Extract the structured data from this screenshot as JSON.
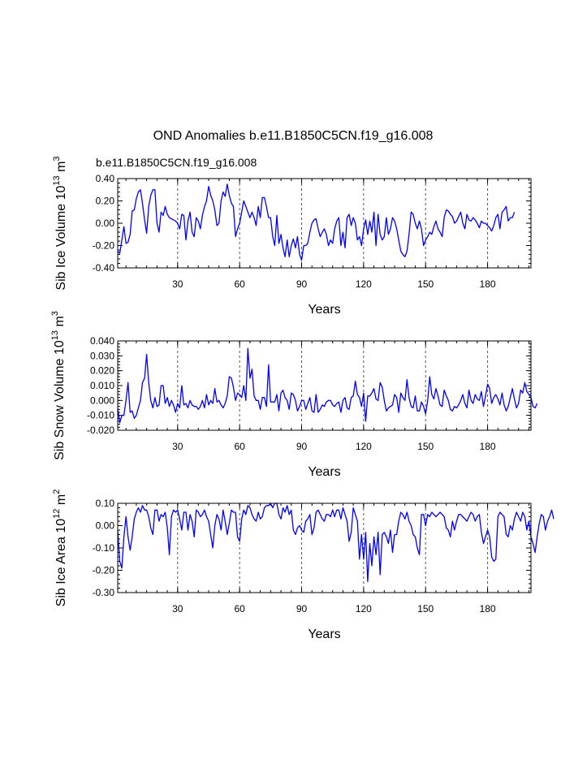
{
  "title": "OND Anomalies b.e11.B1850C5CN.f19_g16.008",
  "subtitle": "b.e11.B1850C5CN.f19_g16.008",
  "colors": {
    "series": "#0000ff",
    "subtitle": "#0000ff",
    "axes": "#000000",
    "grid": "#555555"
  },
  "chart_data": [
    {
      "type": "line",
      "id": "ice-volume",
      "ylabel_main": "Sib Ice Volume 10",
      "ylabel_sup": "13",
      "ylabel_unit": " m",
      "ylabel_unit_sup": "3",
      "xlabel": "Years",
      "xlim": [
        1,
        201
      ],
      "ylim": [
        -0.4,
        0.4
      ],
      "xticks": [
        30,
        60,
        90,
        120,
        150,
        180
      ],
      "xtick_labels": [
        "30",
        "60",
        "90",
        "120",
        "150",
        "180"
      ],
      "yticks": [
        -0.4,
        -0.2,
        0.0,
        0.2,
        0.4
      ],
      "ytick_labels": [
        "-0.40",
        "-0.20",
        "0.00",
        "0.20",
        "0.40"
      ],
      "grid_x": [
        30,
        60,
        90,
        120,
        150,
        180
      ],
      "series": [
        {
          "name": "Sib Ice Volume",
          "x0": 1,
          "values": [
            -0.25,
            -0.27,
            -0.15,
            -0.03,
            -0.18,
            -0.17,
            -0.1,
            0.11,
            0.12,
            0.22,
            0.28,
            0.3,
            0.18,
            0.03,
            -0.09,
            0.15,
            0.25,
            0.3,
            0.3,
            0.0,
            -0.08,
            0.1,
            0.07,
            0.15,
            0.08,
            0.05,
            0.04,
            0.03,
            0.02,
            0.0,
            -0.05,
            0.08,
            0.07,
            -0.15,
            0.02,
            0.1,
            -0.08,
            -0.12,
            0.05,
            0.02,
            -0.05,
            0.07,
            0.15,
            0.2,
            0.33,
            0.25,
            0.2,
            0.12,
            -0.02,
            0.0,
            0.2,
            0.28,
            0.24,
            0.35,
            0.25,
            0.18,
            0.15,
            -0.12,
            -0.05,
            0.0,
            0.1,
            0.2,
            0.15,
            0.1,
            0.05,
            0.1,
            0.05,
            -0.02,
            0.15,
            0.05,
            0.23,
            0.23,
            0.15,
            0.05,
            0.05,
            -0.12,
            -0.2,
            0.07,
            -0.18,
            -0.1,
            -0.22,
            -0.3,
            -0.15,
            -0.3,
            -0.2,
            -0.14,
            -0.22,
            -0.12,
            -0.28,
            -0.33,
            -0.2,
            -0.2,
            -0.18,
            -0.08,
            0.0,
            0.03,
            0.04,
            -0.05,
            -0.12,
            -0.08,
            -0.05,
            -0.1,
            -0.2,
            -0.15,
            -0.18,
            -0.05,
            0.02,
            0.05,
            -0.2,
            -0.08,
            -0.22,
            0.05,
            0.08,
            -0.02,
            0.05,
            0.0,
            -0.15,
            -0.12,
            -0.2,
            -0.05,
            0.03,
            -0.1,
            0.02,
            -0.08,
            0.1,
            -0.2,
            0.08,
            -0.1,
            -0.15,
            -0.12,
            0.05,
            -0.1,
            -0.05,
            0.05,
            0.02,
            -0.05,
            -0.15,
            -0.25,
            -0.28,
            -0.3,
            -0.25,
            -0.1,
            0.1,
            0.08,
            0.0,
            -0.05,
            0.02,
            -0.05,
            -0.2,
            -0.15,
            -0.12,
            -0.08,
            -0.1,
            -0.03,
            0.02,
            -0.05,
            -0.08,
            -0.12,
            0.05,
            0.12,
            0.11,
            0.08,
            0.06,
            0.0,
            0.02,
            0.06,
            0.1,
            0.0,
            -0.05,
            0.08,
            0.03,
            0.02,
            0.05,
            0.03,
            0.0,
            -0.04,
            0.02,
            0.0,
            0.0,
            -0.02,
            -0.04,
            -0.07,
            -0.02,
            0.05,
            0.08,
            -0.05,
            0.1,
            0.12,
            0.15,
            0.02,
            0.05,
            0.05,
            0.1
          ]
        }
      ]
    },
    {
      "type": "line",
      "id": "snow-volume",
      "ylabel_main": "Sib Snow Volume 10",
      "ylabel_sup": "13",
      "ylabel_unit": " m",
      "ylabel_unit_sup": "3",
      "xlabel": "Years",
      "xlim": [
        1,
        201
      ],
      "ylim": [
        -0.02,
        0.04
      ],
      "xticks": [
        30,
        60,
        90,
        120,
        150,
        180
      ],
      "xtick_labels": [
        "30",
        "60",
        "90",
        "120",
        "150",
        "180"
      ],
      "yticks": [
        -0.02,
        -0.01,
        0.0,
        0.01,
        0.02,
        0.03,
        0.04
      ],
      "ytick_labels": [
        "-0.020",
        "-0.010",
        "0.000",
        "0.010",
        "0.020",
        "0.030",
        "0.040"
      ],
      "grid_x": [
        30,
        60,
        90,
        120,
        150,
        180
      ],
      "series": [
        {
          "name": "Sib Snow Volume",
          "x0": 1,
          "values": [
            -0.005,
            -0.015,
            -0.01,
            -0.01,
            0.0,
            0.012,
            -0.008,
            -0.007,
            -0.012,
            -0.01,
            -0.005,
            0.0,
            0.012,
            0.015,
            0.031,
            0.012,
            0.0,
            -0.005,
            0.002,
            -0.004,
            -0.003,
            0.01,
            0.01,
            -0.002,
            0.002,
            -0.004,
            0.0,
            -0.003,
            -0.008,
            -0.002,
            -0.005,
            0.01,
            -0.003,
            -0.002,
            -0.005,
            0.0,
            -0.003,
            -0.004,
            -0.004,
            -0.006,
            -0.004,
            0.0,
            -0.005,
            0.004,
            -0.003,
            0.0,
            -0.002,
            0.008,
            -0.001,
            0.0,
            -0.003,
            -0.005,
            -0.002,
            0.003,
            0.016,
            0.015,
            0.009,
            0.0,
            0.005,
            0.004,
            0.002,
            0.01,
            0.0,
            0.035,
            0.015,
            0.021,
            0.003,
            0.0,
            0.0,
            -0.006,
            0.002,
            0.002,
            -0.004,
            0.024,
            -0.001,
            -0.001,
            -0.001,
            0.004,
            -0.007,
            0.005,
            0.007,
            0.002,
            0.0,
            -0.006,
            0.005,
            0.004,
            0.0,
            -0.007,
            -0.004,
            0.0,
            0.0,
            -0.006,
            -0.002,
            0.002,
            -0.007,
            -0.008,
            0.004,
            -0.008,
            -0.006,
            -0.003,
            -0.004,
            -0.001,
            0.0,
            0.0,
            -0.003,
            -0.004,
            -0.002,
            -0.001,
            -0.008,
            0.0,
            0.002,
            -0.005,
            -0.006,
            0.002,
            0.003,
            0.013,
            0.004,
            0.002,
            -0.004,
            0.005,
            -0.014,
            0.003,
            0.003,
            0.005,
            0.008,
            0.001,
            0.0,
            0.012,
            0.009,
            0.0,
            -0.007,
            -0.005,
            -0.004,
            -0.003,
            0.004,
            0.002,
            -0.008,
            0.005,
            0.002,
            0.0,
            0.014,
            0.002,
            -0.004,
            -0.005,
            0.003,
            -0.007,
            -0.007,
            -0.001,
            -0.004,
            -0.009,
            0.0,
            0.016,
            0.004,
            0.001,
            0.008,
            0.003,
            -0.003,
            -0.004,
            0.007,
            0.003,
            0.0,
            -0.006,
            -0.007,
            -0.004,
            -0.005,
            -0.003,
            0.0,
            0.004,
            -0.002,
            -0.005,
            0.007,
            0.0,
            -0.002,
            0.004,
            0.001,
            0.0,
            0.006,
            -0.004,
            0.003,
            0.011,
            0.008,
            -0.002,
            0.002,
            0.004,
            0.001,
            -0.003,
            0.005,
            -0.003,
            -0.007,
            -0.004,
            0.002,
            0.008,
            0.001,
            -0.005,
            -0.002,
            0.007,
            0.005,
            0.012,
            0.006,
            0.004,
            0.002,
            -0.004,
            -0.005,
            -0.002
          ]
        }
      ]
    },
    {
      "type": "line",
      "id": "ice-area",
      "ylabel_main": "Sib Ice Area 10",
      "ylabel_sup": "12",
      "ylabel_unit": " m",
      "ylabel_unit_sup": "2",
      "xlabel": "Years",
      "xlim": [
        1,
        201
      ],
      "ylim": [
        -0.3,
        0.1
      ],
      "xticks": [
        30,
        60,
        90,
        120,
        150,
        180
      ],
      "xtick_labels": [
        "30",
        "60",
        "90",
        "120",
        "150",
        "180"
      ],
      "yticks": [
        -0.3,
        -0.2,
        -0.1,
        0.0,
        0.1
      ],
      "ytick_labels": [
        "-0.30",
        "-0.20",
        "-0.10",
        "0.00",
        "0.10"
      ],
      "grid_x": [
        30,
        60,
        90,
        120,
        150,
        180
      ],
      "series": [
        {
          "name": "Sib Ice Area",
          "x0": 1,
          "values": [
            -0.02,
            -0.16,
            -0.19,
            -0.05,
            0.04,
            -0.05,
            -0.11,
            -0.05,
            0.03,
            0.06,
            0.08,
            0.06,
            0.09,
            0.07,
            0.07,
            0.04,
            -0.01,
            -0.04,
            0.07,
            0.07,
            0.02,
            0.05,
            0.04,
            0.06,
            -0.01,
            -0.13,
            0.04,
            0.07,
            0.06,
            0.07,
            0.03,
            -0.02,
            0.06,
            0.06,
            -0.02,
            0.05,
            0.02,
            -0.05,
            0.07,
            0.06,
            0.04,
            0.05,
            0.07,
            0.04,
            0.02,
            -0.04,
            -0.1,
            0.0,
            0.05,
            0.03,
            -0.02,
            0.07,
            0.02,
            -0.04,
            0.01,
            0.07,
            0.06,
            0.06,
            -0.05,
            -0.07,
            0.03,
            0.07,
            0.05,
            0.09,
            0.08,
            0.05,
            0.03,
            0.02,
            0.06,
            0.03,
            0.04,
            0.08,
            0.09,
            0.09,
            0.1,
            0.08,
            0.1,
            0.1,
            0.05,
            0.03,
            0.08,
            0.06,
            0.09,
            0.05,
            0.07,
            -0.02,
            -0.04,
            -0.01,
            0.0,
            -0.02,
            -0.03,
            0.02,
            0.03,
            0.05,
            -0.04,
            -0.01,
            0.06,
            0.07,
            0.05,
            0.03,
            0.02,
            0.05,
            0.05,
            0.04,
            0.07,
            0.04,
            0.07,
            0.07,
            0.03,
            0.08,
            0.05,
            0.02,
            -0.07,
            -0.03,
            0.08,
            0.05,
            0.02,
            -0.15,
            -0.04,
            -0.15,
            -0.03,
            -0.25,
            -0.08,
            -0.18,
            -0.05,
            -0.13,
            -0.03,
            -0.22,
            -0.04,
            -0.03,
            -0.05,
            -0.08,
            -0.02,
            -0.12,
            -0.04,
            -0.04,
            0.02,
            0.06,
            0.05,
            0.03,
            0.06,
            0.02,
            0.0,
            -0.04,
            -0.05,
            -0.1,
            -0.13,
            0.05,
            0.05,
            0.0,
            0.05,
            0.04,
            0.06,
            0.05,
            0.04,
            0.05,
            0.06,
            0.05,
            0.04,
            -0.01,
            -0.02,
            -0.05,
            0.02,
            -0.02,
            0.02,
            0.05,
            0.05,
            0.04,
            0.03,
            0.02,
            0.04,
            0.06,
            0.05,
            0.02,
            0.04,
            0.05,
            -0.03,
            -0.08,
            -0.05,
            -0.02,
            -0.05,
            -0.14,
            -0.16,
            -0.15,
            0.04,
            0.06,
            0.05,
            0.04,
            -0.04,
            -0.05,
            0.0,
            -0.02,
            0.03,
            0.06,
            0.04,
            0.02,
            0.06,
            0.04,
            -0.02,
            0.02,
            -0.05,
            -0.08,
            -0.12,
            -0.05,
            0.01,
            0.05,
            0.04,
            -0.02,
            0.02,
            0.04,
            0.07,
            0.03
          ]
        }
      ]
    }
  ]
}
